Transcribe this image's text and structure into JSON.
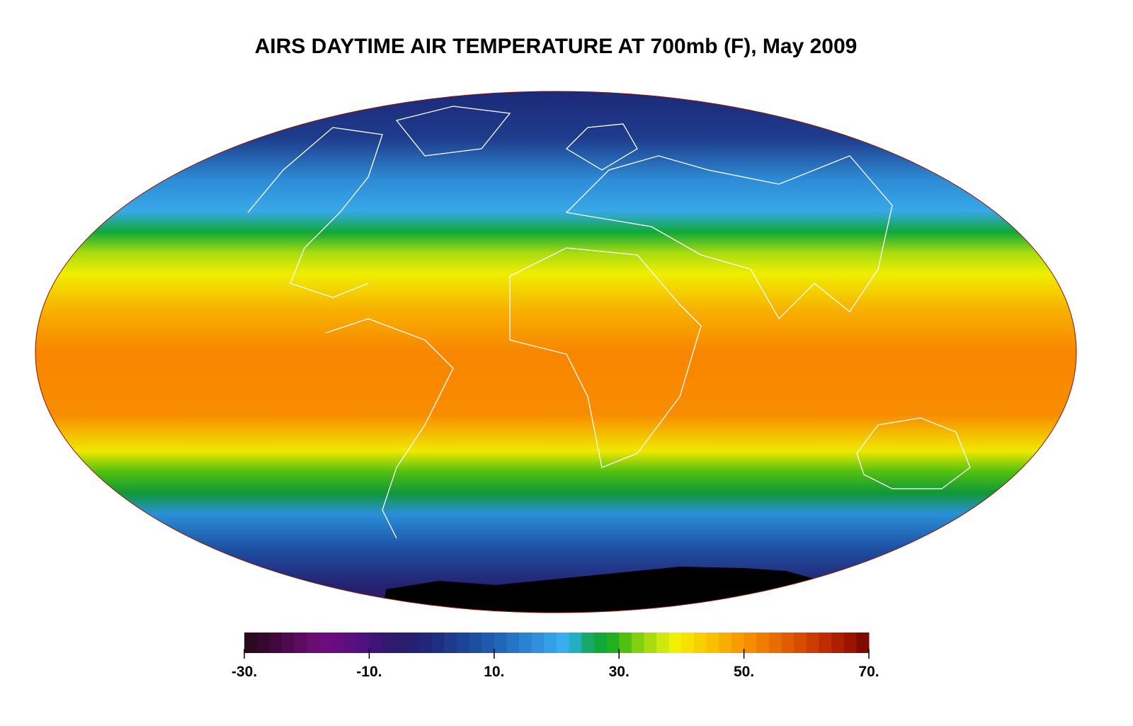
{
  "map": {
    "title": "AIRS DAYTIME AIR TEMPERATURE AT 700mb (F), May 2009"
  },
  "colorbar": {
    "range": [
      -30,
      70
    ],
    "ticks": [
      {
        "value": -30,
        "label": "-30."
      },
      {
        "value": -10,
        "label": "-10."
      },
      {
        "value": 10,
        "label": "10."
      },
      {
        "value": 30,
        "label": "30."
      },
      {
        "value": 50,
        "label": "50."
      },
      {
        "value": 70,
        "label": "70."
      }
    ],
    "colors": [
      "#2a0a1e",
      "#35082e",
      "#42083e",
      "#4f0a4f",
      "#5c0b60",
      "#690d70",
      "#6f0c7c",
      "#660d80",
      "#5a0f80",
      "#4d1180",
      "#3f1478",
      "#341870",
      "#2c1c6c",
      "#262070",
      "#212778",
      "#1e2e80",
      "#1d3a8c",
      "#1c4496",
      "#1d4ea2",
      "#1f5aae",
      "#2266ba",
      "#2674c6",
      "#2b82d2",
      "#3090de",
      "#34a0e8",
      "#38aef0",
      "#22b0c0",
      "#1aa868",
      "#10a838",
      "#20b020",
      "#50c010",
      "#80d010",
      "#a8dc10",
      "#d0e810",
      "#f0f000",
      "#f8e000",
      "#f8d000",
      "#f8c000",
      "#f8ae00",
      "#f89c00",
      "#f88c00",
      "#f07c00",
      "#e86c00",
      "#e05c00",
      "#d84c00",
      "#cc3c00",
      "#c02c00",
      "#b01e00",
      "#9c1400",
      "#800a00"
    ]
  }
}
